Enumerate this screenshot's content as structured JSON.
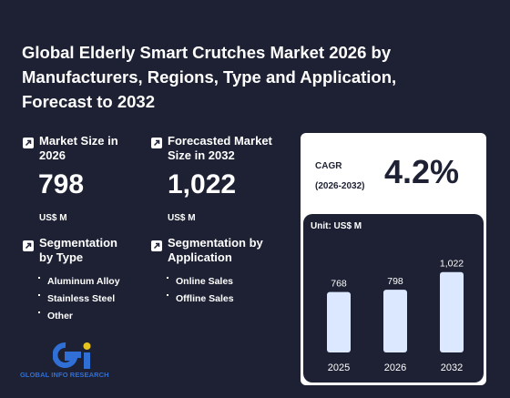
{
  "title": "Global Elderly Smart Crutches Market 2026 by Manufacturers, Regions, Type and Application, Forecast to 2032",
  "market_size": {
    "label": "Market Size in 2026",
    "value": "798",
    "unit": "US$ M"
  },
  "forecast_size": {
    "label": "Forecasted Market Size in 2032",
    "value": "1,022",
    "unit": "US$ M"
  },
  "segmentation_type": {
    "label": "Segmentation by Type",
    "items": [
      "Aluminum Alloy",
      "Stainless Steel",
      "Other"
    ]
  },
  "segmentation_application": {
    "label": "Segmentation by Application",
    "items": [
      "Online Sales",
      "Offline Sales"
    ]
  },
  "cagr": {
    "label_line1": "CAGR",
    "label_line2": "(2026-2032)",
    "value": "4.2%"
  },
  "logo": {
    "text": "GLOBAL INFO RESEARCH"
  },
  "colors": {
    "background": "#1d2133",
    "bar": "#dbe8ff",
    "panel": "#ffffff",
    "logo_blue": "#2f6fd6",
    "logo_yellow": "#e6c21c"
  },
  "icons": {
    "stat": "arrow-up-right-icon"
  },
  "chart_data": {
    "type": "bar",
    "unit_label": "Unit: US$ M",
    "categories": [
      "2025",
      "2026",
      "2032"
    ],
    "values": [
      768,
      798,
      1022
    ],
    "value_labels": [
      "768",
      "798",
      "1,022"
    ],
    "title": "",
    "xlabel": "",
    "ylabel": "",
    "ylim": [
      0,
      1100
    ],
    "grid": false
  }
}
